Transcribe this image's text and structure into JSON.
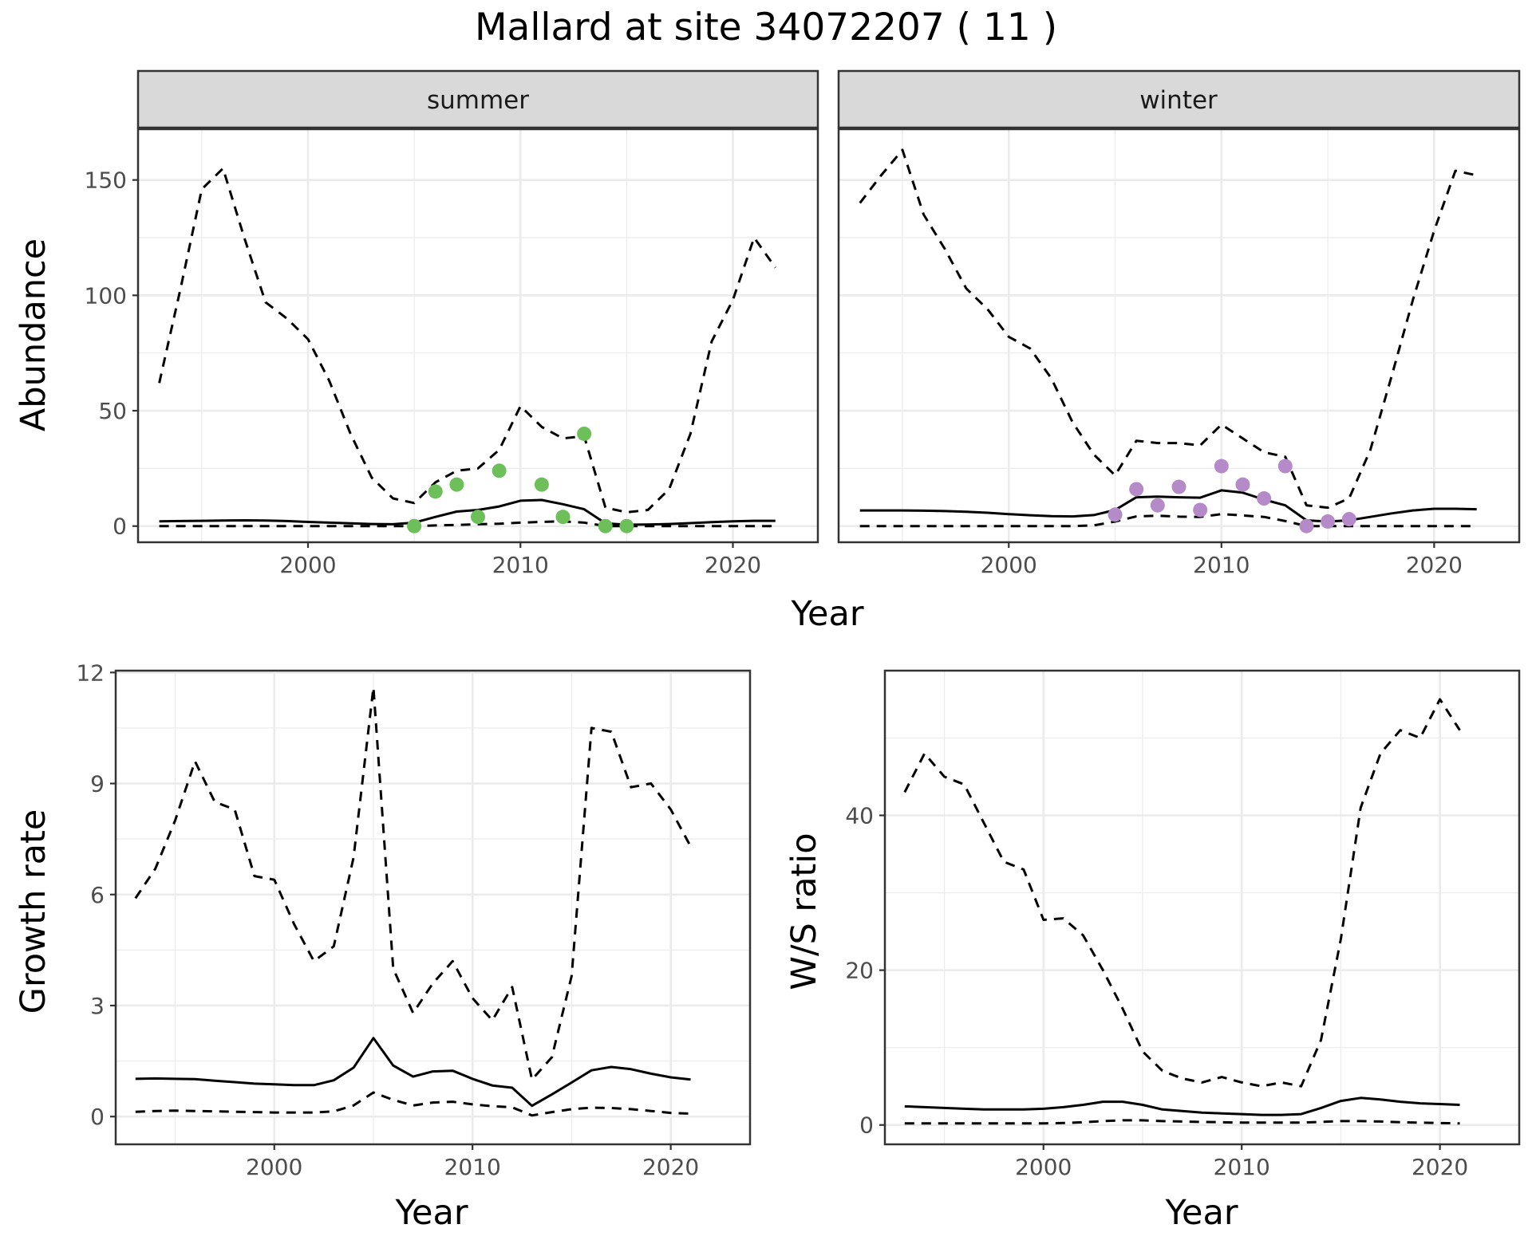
{
  "title": "Mallard at site 34072207 ( 11 )",
  "colors": {
    "summer_points": "#6dbf5a",
    "winter_points": "#b58ac8",
    "lines": "#000000",
    "grid": "#ebebeb",
    "strip_fill": "#d9d9d9"
  },
  "chart_data": [
    {
      "type": "line",
      "id": "summer",
      "strip": "summer",
      "xlabel": "Year",
      "ylabel": "Abundance",
      "xlim": [
        1992,
        2024
      ],
      "ylim": [
        -7,
        172
      ],
      "xticks": [
        2000,
        2010,
        2020
      ],
      "yticks": [
        0,
        50,
        100,
        150
      ],
      "grid": true,
      "series": [
        {
          "role": "estimate",
          "style": "solid",
          "x": [
            1993,
            1994,
            1995,
            1996,
            1997,
            1998,
            1999,
            2000,
            2001,
            2002,
            2003,
            2004,
            2005,
            2006,
            2007,
            2008,
            2009,
            2010,
            2011,
            2012,
            2013,
            2014,
            2015,
            2016,
            2017,
            2018,
            2019,
            2020,
            2021,
            2022
          ],
          "y": [
            2.1,
            2.2,
            2.3,
            2.4,
            2.5,
            2.4,
            2.2,
            1.8,
            1.5,
            1.2,
            0.9,
            0.8,
            1.5,
            4,
            6.3,
            7,
            8.5,
            11,
            11.3,
            9.5,
            7.3,
            1.2,
            0.6,
            0.7,
            0.9,
            1.3,
            1.7,
            2.1,
            2.3,
            2.3
          ]
        },
        {
          "role": "upper",
          "style": "dashed",
          "x": [
            1993,
            1994,
            1995,
            1996,
            1997,
            1998,
            1999,
            2000,
            2001,
            2002,
            2003,
            2004,
            2005,
            2006,
            2007,
            2008,
            2009,
            2010,
            2011,
            2012,
            2013,
            2014,
            2015,
            2016,
            2017,
            2018,
            2019,
            2020,
            2021,
            2022
          ],
          "y": [
            62,
            103,
            146,
            155,
            125,
            97,
            90,
            81,
            63,
            40,
            21,
            12,
            10,
            19,
            24,
            25,
            33,
            52,
            43,
            38,
            39,
            8,
            6,
            7,
            16,
            40,
            80,
            98,
            125,
            112
          ]
        },
        {
          "role": "lower",
          "style": "dashed",
          "x": [
            1993,
            1994,
            1995,
            1996,
            1997,
            1998,
            1999,
            2000,
            2001,
            2002,
            2003,
            2004,
            2005,
            2006,
            2007,
            2008,
            2009,
            2010,
            2011,
            2012,
            2013,
            2014,
            2015,
            2016,
            2017,
            2018,
            2019,
            2020,
            2021,
            2022
          ],
          "y": [
            0,
            0,
            0,
            0,
            0,
            0,
            0,
            0,
            0,
            0,
            0,
            0,
            0,
            0.3,
            0.5,
            0.8,
            1,
            1.5,
            1.8,
            2.1,
            1.5,
            0,
            0,
            0,
            0,
            0,
            0,
            0,
            0,
            0
          ]
        },
        {
          "role": "observed",
          "style": "points",
          "x": [
            2005,
            2006,
            2007,
            2008,
            2009,
            2011,
            2012,
            2013,
            2014,
            2015
          ],
          "y": [
            0,
            15,
            18,
            4,
            24,
            18,
            4,
            40,
            0,
            0
          ]
        }
      ]
    },
    {
      "type": "line",
      "id": "winter",
      "strip": "winter",
      "xlabel": "Year",
      "ylabel": "Abundance",
      "xlim": [
        1992,
        2024
      ],
      "ylim": [
        -7,
        172
      ],
      "xticks": [
        2000,
        2010,
        2020
      ],
      "yticks": [
        0,
        50,
        100,
        150
      ],
      "grid": true,
      "series": [
        {
          "role": "estimate",
          "style": "solid",
          "x": [
            1993,
            1994,
            1995,
            1996,
            1997,
            1998,
            1999,
            2000,
            2001,
            2002,
            2003,
            2004,
            2005,
            2006,
            2007,
            2008,
            2009,
            2010,
            2011,
            2012,
            2013,
            2014,
            2015,
            2016,
            2017,
            2018,
            2019,
            2020,
            2021,
            2022
          ],
          "y": [
            6.8,
            6.8,
            6.8,
            6.7,
            6.5,
            6.2,
            5.8,
            5.2,
            4.7,
            4.3,
            4.2,
            4.8,
            7,
            12.5,
            12.8,
            12.5,
            12.3,
            15.5,
            14.5,
            11.5,
            9,
            2.5,
            2,
            2.5,
            4,
            5.5,
            6.8,
            7.5,
            7.5,
            7.3
          ]
        },
        {
          "role": "upper",
          "style": "dashed",
          "x": [
            1993,
            1994,
            1995,
            1996,
            1997,
            1998,
            1999,
            2000,
            2001,
            2002,
            2003,
            2004,
            2005,
            2006,
            2007,
            2008,
            2009,
            2010,
            2011,
            2012,
            2013,
            2014,
            2015,
            2016,
            2017,
            2018,
            2019,
            2020,
            2021,
            2022
          ],
          "y": [
            140,
            152,
            163,
            135,
            120,
            103,
            94,
            82,
            77,
            64,
            45,
            31,
            22,
            37,
            36,
            36,
            35,
            44,
            38,
            32,
            30,
            9,
            8,
            12,
            33,
            65,
            98,
            128,
            154,
            152
          ]
        },
        {
          "role": "lower",
          "style": "dashed",
          "x": [
            1993,
            1994,
            1995,
            1996,
            1997,
            1998,
            1999,
            2000,
            2001,
            2002,
            2003,
            2004,
            2005,
            2006,
            2007,
            2008,
            2009,
            2010,
            2011,
            2012,
            2013,
            2014,
            2015,
            2016,
            2017,
            2018,
            2019,
            2020,
            2021,
            2022
          ],
          "y": [
            0,
            0,
            0,
            0,
            0,
            0,
            0,
            0,
            0,
            0,
            0,
            0.3,
            2,
            4.2,
            4.5,
            4.1,
            4,
            5.2,
            4.6,
            4,
            2.2,
            0,
            0,
            0,
            0,
            0,
            0,
            0,
            0,
            0
          ]
        },
        {
          "role": "observed",
          "style": "points",
          "x": [
            2005,
            2006,
            2007,
            2008,
            2009,
            2010,
            2011,
            2012,
            2013,
            2014,
            2015,
            2016
          ],
          "y": [
            5,
            16,
            9,
            17,
            7,
            26,
            18,
            12,
            26,
            0,
            2,
            3
          ]
        }
      ]
    },
    {
      "type": "line",
      "id": "growth",
      "xlabel": "Year",
      "ylabel": "Growth rate",
      "xlim": [
        1992,
        2024
      ],
      "ylim": [
        -0.75,
        12.05
      ],
      "xticks": [
        2000,
        2010,
        2020
      ],
      "yticks": [
        0,
        3,
        6,
        9,
        12
      ],
      "grid": true,
      "series": [
        {
          "role": "estimate",
          "style": "solid",
          "x": [
            1993,
            1994,
            1995,
            1996,
            1997,
            1998,
            1999,
            2000,
            2001,
            2002,
            2003,
            2004,
            2005,
            2006,
            2007,
            2008,
            2009,
            2010,
            2011,
            2012,
            2013,
            2014,
            2015,
            2016,
            2017,
            2018,
            2019,
            2020,
            2021
          ],
          "y": [
            1.02,
            1.03,
            1.02,
            1.01,
            0.97,
            0.93,
            0.89,
            0.87,
            0.85,
            0.85,
            0.98,
            1.32,
            2.12,
            1.38,
            1.08,
            1.22,
            1.24,
            1.02,
            0.84,
            0.78,
            0.29,
            0.6,
            0.92,
            1.25,
            1.34,
            1.28,
            1.16,
            1.06,
            1.0
          ]
        },
        {
          "role": "upper",
          "style": "dashed",
          "x": [
            1993,
            1994,
            1995,
            1996,
            1997,
            1998,
            1999,
            2000,
            2001,
            2002,
            2003,
            2004,
            2005,
            2006,
            2007,
            2008,
            2009,
            2010,
            2011,
            2012,
            2013,
            2014,
            2015,
            2016,
            2017,
            2018,
            2019,
            2020,
            2021
          ],
          "y": [
            5.9,
            6.7,
            8,
            9.6,
            8.5,
            8.3,
            6.5,
            6.4,
            5.2,
            4.2,
            4.6,
            7,
            11.6,
            4,
            2.8,
            3.6,
            4.2,
            3.2,
            2.6,
            3.5,
            1,
            1.6,
            3.8,
            10.5,
            10.4,
            8.9,
            9,
            8.3,
            7.3
          ]
        },
        {
          "role": "lower",
          "style": "dashed",
          "x": [
            1993,
            1994,
            1995,
            1996,
            1997,
            1998,
            1999,
            2000,
            2001,
            2002,
            2003,
            2004,
            2005,
            2006,
            2007,
            2008,
            2009,
            2010,
            2011,
            2012,
            2013,
            2014,
            2015,
            2016,
            2017,
            2018,
            2019,
            2020,
            2021
          ],
          "y": [
            0.13,
            0.15,
            0.16,
            0.15,
            0.14,
            0.13,
            0.12,
            0.11,
            0.11,
            0.11,
            0.14,
            0.3,
            0.65,
            0.45,
            0.3,
            0.38,
            0.4,
            0.33,
            0.28,
            0.25,
            0.03,
            0.12,
            0.2,
            0.24,
            0.23,
            0.2,
            0.15,
            0.1,
            0.08
          ]
        }
      ]
    },
    {
      "type": "line",
      "id": "ratio",
      "xlabel": "Year",
      "ylabel": "W/S ratio",
      "xlim": [
        1992,
        2024
      ],
      "ylim": [
        -2.5,
        58.7
      ],
      "xticks": [
        2000,
        2010,
        2020
      ],
      "yticks": [
        0,
        20,
        40
      ],
      "grid": true,
      "series": [
        {
          "role": "estimate",
          "style": "solid",
          "x": [
            1993,
            1994,
            1995,
            1996,
            1997,
            1998,
            1999,
            2000,
            2001,
            2002,
            2003,
            2004,
            2005,
            2006,
            2007,
            2008,
            2009,
            2010,
            2011,
            2012,
            2013,
            2014,
            2015,
            2016,
            2017,
            2018,
            2019,
            2020,
            2021
          ],
          "y": [
            2.4,
            2.3,
            2.2,
            2.1,
            2,
            2,
            2,
            2.1,
            2.3,
            2.6,
            3,
            3,
            2.6,
            2,
            1.8,
            1.6,
            1.5,
            1.4,
            1.3,
            1.3,
            1.4,
            2.2,
            3.1,
            3.5,
            3.3,
            3,
            2.8,
            2.7,
            2.6
          ]
        },
        {
          "role": "upper",
          "style": "dashed",
          "x": [
            1993,
            1994,
            1995,
            1996,
            1997,
            1998,
            1999,
            2000,
            2001,
            2002,
            2003,
            2004,
            2005,
            2006,
            2007,
            2008,
            2009,
            2010,
            2011,
            2012,
            2013,
            2014,
            2015,
            2016,
            2017,
            2018,
            2019,
            2020,
            2021
          ],
          "y": [
            43,
            48,
            45,
            44,
            39,
            34,
            33,
            26.5,
            26.7,
            24.5,
            20,
            15,
            9.5,
            7,
            6,
            5.5,
            6.2,
            5.5,
            5,
            5.5,
            5,
            11,
            24,
            41,
            48,
            51,
            50,
            55,
            51
          ]
        },
        {
          "role": "lower",
          "style": "dashed",
          "x": [
            1993,
            1994,
            1995,
            1996,
            1997,
            1998,
            1999,
            2000,
            2001,
            2002,
            2003,
            2004,
            2005,
            2006,
            2007,
            2008,
            2009,
            2010,
            2011,
            2012,
            2013,
            2014,
            2015,
            2016,
            2017,
            2018,
            2019,
            2020,
            2021
          ],
          "y": [
            0.2,
            0.2,
            0.2,
            0.2,
            0.2,
            0.2,
            0.2,
            0.2,
            0.25,
            0.35,
            0.5,
            0.6,
            0.6,
            0.5,
            0.45,
            0.4,
            0.35,
            0.3,
            0.3,
            0.3,
            0.3,
            0.4,
            0.5,
            0.5,
            0.45,
            0.35,
            0.3,
            0.25,
            0.2
          ]
        }
      ]
    }
  ]
}
